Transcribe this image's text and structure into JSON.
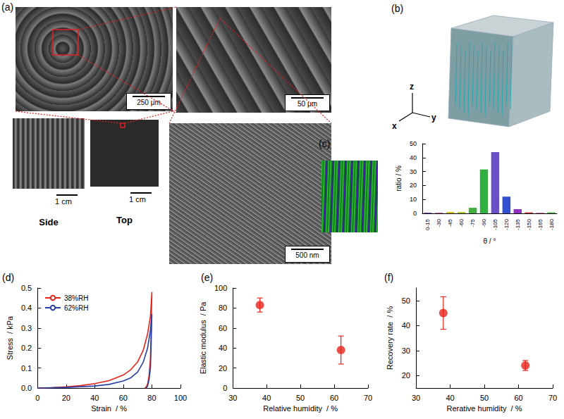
{
  "figure": {
    "panel_a": {
      "label": "(a)",
      "images": [
        {
          "scale_bar": "250 μm"
        },
        {
          "scale_bar": "50 μm"
        },
        {
          "scale_bar": "1 cm",
          "caption": "Side"
        },
        {
          "scale_bar": "1 cm",
          "caption": "Top"
        },
        {
          "scale_bar": "500 nm"
        }
      ]
    },
    "panel_b": {
      "label": "(b)",
      "axis_names": [
        "z",
        "x",
        "y"
      ]
    }
  },
  "chart_data": [
    {
      "panel": "(c)",
      "type": "bar",
      "x_label": "θ / °",
      "y_label": "ratio / %",
      "categories": [
        "0-15",
        "-30",
        "-45",
        "-60",
        "-75",
        "-90",
        "-105",
        "-120",
        "-135",
        "-150",
        "-165",
        "-180"
      ],
      "values": [
        0.5,
        0.5,
        1,
        1,
        4,
        31.5,
        44,
        12,
        3,
        0.7,
        0.5,
        0.7
      ],
      "colors": [
        "#7a3fb0",
        "#c050a0",
        "#d8c020",
        "#b8c830",
        "#40b040",
        "#30b040",
        "#6a4fc8",
        "#3050d0",
        "#9030c0",
        "#d03030",
        "#d060a0",
        "#40b040"
      ],
      "ylim": [
        0,
        50
      ],
      "yticks": [
        0,
        10,
        20,
        30,
        40,
        50
      ],
      "grid": false
    },
    {
      "panel": "(d)",
      "type": "line",
      "x_label": "Strain  / %",
      "y_label": "Stress  / kPa",
      "series": [
        {
          "name": "38%RH",
          "color": "#e8231a",
          "x": [
            0,
            10,
            20,
            30,
            40,
            50,
            60,
            65,
            70,
            74,
            77,
            79,
            80,
            79.5,
            79,
            78,
            77,
            76,
            75
          ],
          "values": [
            0,
            0.002,
            0.006,
            0.012,
            0.022,
            0.037,
            0.065,
            0.09,
            0.13,
            0.19,
            0.27,
            0.36,
            0.48,
            0.3,
            0.15,
            0.06,
            0.02,
            0.005,
            0
          ]
        },
        {
          "name": "62%RH",
          "color": "#2b3fa8",
          "x": [
            0,
            20,
            40,
            50,
            60,
            65,
            70,
            74,
            77,
            79,
            80,
            79.5,
            79,
            78,
            77,
            76
          ],
          "values": [
            0,
            0.003,
            0.01,
            0.018,
            0.035,
            0.05,
            0.08,
            0.13,
            0.2,
            0.29,
            0.37,
            0.22,
            0.1,
            0.04,
            0.01,
            0
          ]
        }
      ],
      "xlim": [
        0,
        100
      ],
      "xticks": [
        0,
        20,
        40,
        60,
        80,
        100
      ],
      "ylim": [
        0,
        0.5
      ],
      "yticks": [
        {
          "value": 0,
          "label": "0.0"
        },
        0.1,
        0.2,
        0.3,
        0.4,
        0.5
      ],
      "legend": "upper left",
      "grid": false
    },
    {
      "panel": "(e)",
      "type": "scatter",
      "x_label": "Relative humidity  / %",
      "y_label": "Elastic modulus  / Pa",
      "x": [
        38,
        62
      ],
      "values": [
        83,
        38
      ],
      "errors": [
        7,
        14
      ],
      "color": "#e8231a",
      "marker": "circle",
      "xlim": [
        30,
        70
      ],
      "xticks": [
        30,
        40,
        50,
        60,
        70
      ],
      "ylim": [
        0,
        100
      ],
      "yticks": [
        0,
        20,
        40,
        60,
        80,
        100
      ],
      "grid": false
    },
    {
      "panel": "(f)",
      "type": "scatter",
      "x_label": "Rerative humidity  / %",
      "y_label": "Recovery rate  / %",
      "x": [
        38,
        62
      ],
      "values": [
        45,
        24
      ],
      "errors": [
        6.5,
        2
      ],
      "color": "#e8231a",
      "marker": "circle",
      "xlim": [
        30,
        70
      ],
      "xticks": [
        30,
        40,
        50,
        60,
        70
      ],
      "ylim": [
        15,
        55
      ],
      "yticks": [
        20,
        30,
        40,
        50
      ],
      "grid": false
    }
  ]
}
